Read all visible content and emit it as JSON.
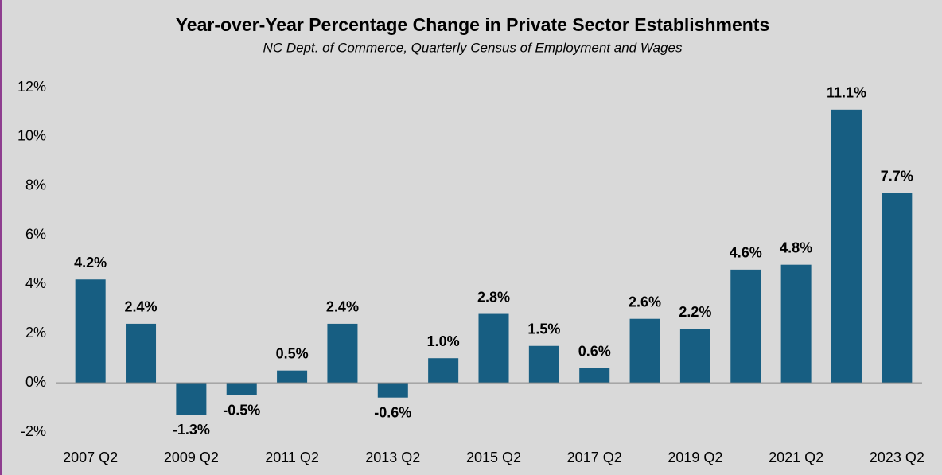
{
  "chart_data": {
    "type": "bar",
    "title": "Year-over-Year Percentage Change in Private Sector Establishments",
    "subtitle": "NC Dept. of Commerce, Quarterly Census of Employment and Wages",
    "categories": [
      "2007 Q2",
      null,
      "2009 Q2",
      null,
      "2011 Q2",
      null,
      "2013 Q2",
      null,
      "2015 Q2",
      null,
      "2017 Q2",
      null,
      "2019 Q2",
      null,
      "2021 Q2",
      null,
      "2023 Q2"
    ],
    "values": [
      4.2,
      2.4,
      -1.3,
      -0.5,
      0.5,
      2.4,
      -0.6,
      1.0,
      2.8,
      1.5,
      0.6,
      2.6,
      2.2,
      4.6,
      4.8,
      11.1,
      7.7
    ],
    "value_labels": [
      "4.2%",
      "2.4%",
      "-1.3%",
      "-0.5%",
      "0.5%",
      "2.4%",
      "-0.6%",
      "1.0%",
      "2.8%",
      "1.5%",
      "0.6%",
      "2.6%",
      "2.2%",
      "4.6%",
      "4.8%",
      "11.1%",
      "7.7%"
    ],
    "color": "#175e82",
    "ylim": [
      -2,
      12
    ],
    "yticks": [
      {
        "value": -2,
        "label": "-2%"
      },
      {
        "value": 0,
        "label": "0%"
      },
      {
        "value": 2,
        "label": "2%"
      },
      {
        "value": 4,
        "label": "4%"
      },
      {
        "value": 6,
        "label": "6%"
      },
      {
        "value": 8,
        "label": "8%"
      },
      {
        "value": 10,
        "label": "10%"
      },
      {
        "value": 12,
        "label": "12%"
      }
    ],
    "grid": false
  }
}
